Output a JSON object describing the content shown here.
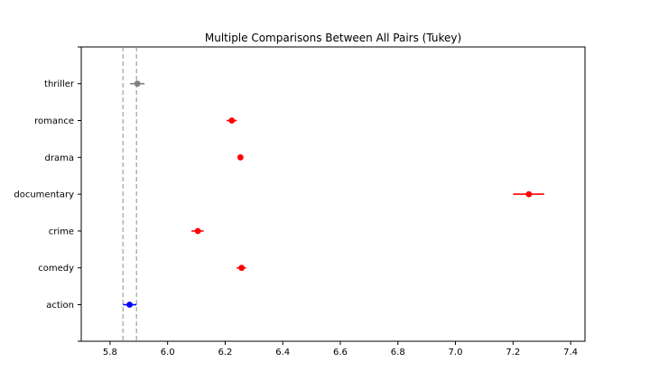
{
  "chart_data": {
    "type": "scatter",
    "title": "Multiple Comparisons Between All Pairs (Tukey)",
    "xlabel": "",
    "ylabel": "",
    "xlim": [
      5.7,
      7.45
    ],
    "xticks": [
      "5.8",
      "6.0",
      "6.2",
      "6.4",
      "6.6",
      "6.8",
      "7.0",
      "7.2",
      "7.4"
    ],
    "categories": [
      "action",
      "comedy",
      "crime",
      "documentary",
      "drama",
      "romance",
      "thriller"
    ],
    "means": [
      5.868,
      6.257,
      6.105,
      7.255,
      6.253,
      6.223,
      5.895
    ],
    "lower": [
      5.845,
      6.24,
      6.083,
      7.2,
      6.243,
      6.205,
      5.87
    ],
    "upper": [
      5.892,
      6.272,
      6.125,
      7.308,
      6.263,
      6.24,
      5.92
    ],
    "point_colors": [
      "#0000ff",
      "#ff0000",
      "#ff0000",
      "#ff0000",
      "#ff0000",
      "#ff0000",
      "#808080"
    ],
    "reference_lines": [
      5.845,
      5.892
    ],
    "grid": false
  }
}
